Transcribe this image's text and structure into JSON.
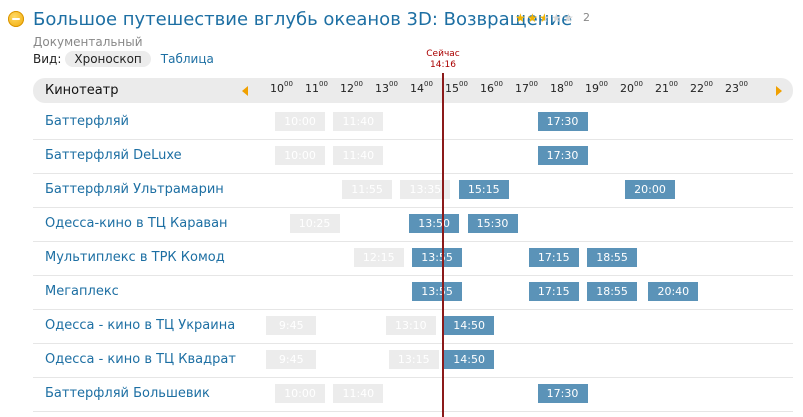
{
  "movie": {
    "title": "Большое путешествие вглубь океанов 3D: Возвращение",
    "genre": "Документальный",
    "rating": {
      "value": 2.5,
      "max": 5,
      "count": "2"
    }
  },
  "view": {
    "label": "Вид:",
    "options": [
      "Хроноскоп",
      "Таблица"
    ],
    "active": "Хроноскоп"
  },
  "now": {
    "label": "Сейчас",
    "time": "14:16"
  },
  "header": {
    "cinema_col": "Кинотеатр"
  },
  "hours": [
    {
      "h": "10",
      "m": "00"
    },
    {
      "h": "11",
      "m": "00"
    },
    {
      "h": "12",
      "m": "00"
    },
    {
      "h": "13",
      "m": "00"
    },
    {
      "h": "14",
      "m": "00"
    },
    {
      "h": "15",
      "m": "00"
    },
    {
      "h": "16",
      "m": "00"
    },
    {
      "h": "17",
      "m": "00"
    },
    {
      "h": "18",
      "m": "00"
    },
    {
      "h": "19",
      "m": "00"
    },
    {
      "h": "20",
      "m": "00"
    },
    {
      "h": "21",
      "m": "00"
    },
    {
      "h": "22",
      "m": "00"
    },
    {
      "h": "23",
      "m": "00"
    }
  ],
  "cinemas": [
    {
      "name": "Баттерфляй",
      "sessions": [
        {
          "time": "10:00",
          "past": true
        },
        {
          "time": "11:40",
          "past": true
        },
        {
          "time": "17:30",
          "past": false
        }
      ]
    },
    {
      "name": "Баттерфляй DeLuxe",
      "sessions": [
        {
          "time": "10:00",
          "past": true
        },
        {
          "time": "11:40",
          "past": true
        },
        {
          "time": "17:30",
          "past": false
        }
      ]
    },
    {
      "name": "Баттерфляй Ультрамарин",
      "sessions": [
        {
          "time": "11:55",
          "past": true
        },
        {
          "time": "13:35",
          "past": true
        },
        {
          "time": "15:15",
          "past": false
        },
        {
          "time": "20:00",
          "past": false
        }
      ]
    },
    {
      "name": "Одесса-кино в ТЦ Караван",
      "sessions": [
        {
          "time": "10:25",
          "past": true
        },
        {
          "time": "13:50",
          "past": false
        },
        {
          "time": "15:30",
          "past": false
        }
      ]
    },
    {
      "name": "Мультиплекс в ТРК Комод",
      "sessions": [
        {
          "time": "12:15",
          "past": true
        },
        {
          "time": "13:55",
          "past": false
        },
        {
          "time": "17:15",
          "past": false
        },
        {
          "time": "18:55",
          "past": false
        }
      ]
    },
    {
      "name": "Мегаплекс",
      "sessions": [
        {
          "time": "13:55",
          "past": false
        },
        {
          "time": "17:15",
          "past": false
        },
        {
          "time": "18:55",
          "past": false
        },
        {
          "time": "20:40",
          "past": false
        }
      ]
    },
    {
      "name": "Одесса - кино в ТЦ Украина",
      "sessions": [
        {
          "time": "9:45",
          "past": true
        },
        {
          "time": "13:10",
          "past": true
        },
        {
          "time": "14:50",
          "past": false
        }
      ]
    },
    {
      "name": "Одесса - кино в ТЦ Квадрат",
      "sessions": [
        {
          "time": "9:45",
          "past": true
        },
        {
          "time": "13:15",
          "past": true
        },
        {
          "time": "14:50",
          "past": false
        }
      ]
    },
    {
      "name": "Баттерфляй Большевик",
      "sessions": [
        {
          "time": "10:00",
          "past": true
        },
        {
          "time": "11:40",
          "past": true
        },
        {
          "time": "17:30",
          "past": false
        }
      ]
    }
  ],
  "colors": {
    "accent": "#1d6fa3",
    "session": "#5b93b8",
    "past": "#ececec",
    "now_line": "#8b1a1a",
    "arrow": "#f0a000"
  }
}
